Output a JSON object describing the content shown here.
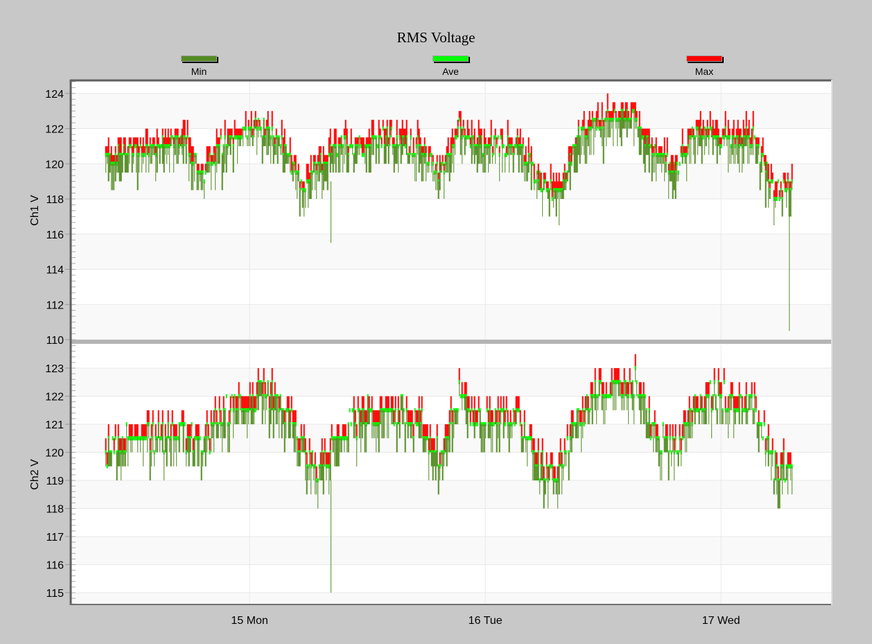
{
  "chart_data": {
    "type": "line",
    "title": "RMS Voltage",
    "legend": {
      "placement": "top",
      "entries": [
        "Min",
        "Ave",
        "Max"
      ]
    },
    "colors": {
      "Min": "#548c24",
      "Ave": "#00ff00",
      "Max": "#ff0000"
    },
    "x_axis": {
      "unit": "day",
      "range": [
        14.244,
        17.47
      ],
      "ticks": [
        {
          "value": 15,
          "label": "15 Mon"
        },
        {
          "value": 16,
          "label": "16 Tue"
        },
        {
          "value": 17,
          "label": "17 Wed"
        }
      ]
    },
    "sampling": {
      "start_day": 14.39,
      "step_hours": 2
    },
    "panels": [
      {
        "ylabel": "Ch1 V",
        "ylim": [
          110,
          124.7
        ],
        "ticks": [
          110,
          112,
          114,
          116,
          118,
          120,
          122,
          124
        ],
        "ave": [
          120.3,
          120.6,
          120.8,
          121.2,
          121.2,
          119.3,
          121.2,
          121.8,
          122,
          121.2,
          118.6,
          120,
          121,
          121,
          121.4,
          121.3,
          120.8,
          119.5,
          122,
          121,
          121,
          121,
          119.3,
          118,
          121.5,
          122.2,
          122.6,
          122.6,
          120.5,
          119.6,
          121.8,
          121.5,
          121.5,
          121.5,
          118.3,
          118.5
        ],
        "spread": 1.5,
        "spikes": [
          {
            "day": 15.345,
            "min": 115.5
          },
          {
            "day": 17.29,
            "min": 110.5
          }
        ]
      },
      {
        "ylabel": "Ch2 V",
        "ylim": [
          114.58,
          123.84
        ],
        "ticks": [
          115,
          116,
          117,
          118,
          119,
          120,
          121,
          122,
          123
        ],
        "ave": [
          120,
          120.4,
          120.6,
          120.7,
          120.6,
          120.2,
          121.5,
          121.8,
          122,
          121.8,
          120,
          119.4,
          120.6,
          121.3,
          121.4,
          121.5,
          121,
          119.8,
          121.9,
          121.3,
          121.2,
          121.3,
          119.6,
          119.3,
          121.2,
          122.1,
          122.3,
          122.5,
          120.5,
          120,
          121.8,
          122,
          121.8,
          121.8,
          119.6,
          119.5
        ],
        "spread": 1.0,
        "spikes": [
          {
            "day": 15.345,
            "min": 115
          }
        ]
      }
    ]
  }
}
